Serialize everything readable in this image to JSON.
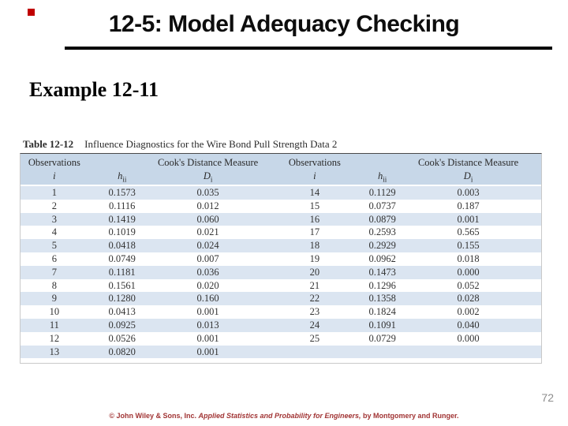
{
  "slide": {
    "title": "12-5: Model Adequacy Checking",
    "subtitle": "Example 12-11",
    "page_number": "72",
    "accent_color": "#c00000",
    "footer": {
      "prefix": "© John Wiley & Sons, Inc. ",
      "book_title": "Applied Statistics and Probability for Engineers,",
      "suffix": " by Montgomery and Runger."
    }
  },
  "table": {
    "caption_label": "Table 12-12",
    "caption_text": "Influence Diagnostics for the Wire Bond Pull Strength Data 2",
    "header": {
      "observations": "Observations",
      "obs_symbol": "i",
      "leverage_base": "h",
      "leverage_sub": "ii",
      "cooks": "Cook's Distance Measure",
      "cooks_base": "D",
      "cooks_sub": "i"
    },
    "colors": {
      "header_bg": "#c7d7e8",
      "row_alt_bg": "#dbe5f1",
      "row_bg": "#ffffff"
    },
    "rows": [
      {
        "i1": "1",
        "h1": "0.1573",
        "d1": "0.035",
        "i2": "14",
        "h2": "0.1129",
        "d2": "0.003"
      },
      {
        "i1": "2",
        "h1": "0.1116",
        "d1": "0.012",
        "i2": "15",
        "h2": "0.0737",
        "d2": "0.187"
      },
      {
        "i1": "3",
        "h1": "0.1419",
        "d1": "0.060",
        "i2": "16",
        "h2": "0.0879",
        "d2": "0.001"
      },
      {
        "i1": "4",
        "h1": "0.1019",
        "d1": "0.021",
        "i2": "17",
        "h2": "0.2593",
        "d2": "0.565"
      },
      {
        "i1": "5",
        "h1": "0.0418",
        "d1": "0.024",
        "i2": "18",
        "h2": "0.2929",
        "d2": "0.155"
      },
      {
        "i1": "6",
        "h1": "0.0749",
        "d1": "0.007",
        "i2": "19",
        "h2": "0.0962",
        "d2": "0.018"
      },
      {
        "i1": "7",
        "h1": "0.1181",
        "d1": "0.036",
        "i2": "20",
        "h2": "0.1473",
        "d2": "0.000"
      },
      {
        "i1": "8",
        "h1": "0.1561",
        "d1": "0.020",
        "i2": "21",
        "h2": "0.1296",
        "d2": "0.052"
      },
      {
        "i1": "9",
        "h1": "0.1280",
        "d1": "0.160",
        "i2": "22",
        "h2": "0.1358",
        "d2": "0.028"
      },
      {
        "i1": "10",
        "h1": "0.0413",
        "d1": "0.001",
        "i2": "23",
        "h2": "0.1824",
        "d2": "0.002"
      },
      {
        "i1": "11",
        "h1": "0.0925",
        "d1": "0.013",
        "i2": "24",
        "h2": "0.1091",
        "d2": "0.040"
      },
      {
        "i1": "12",
        "h1": "0.0526",
        "d1": "0.001",
        "i2": "25",
        "h2": "0.0729",
        "d2": "0.000"
      },
      {
        "i1": "13",
        "h1": "0.0820",
        "d1": "0.001",
        "i2": "",
        "h2": "",
        "d2": ""
      }
    ]
  }
}
